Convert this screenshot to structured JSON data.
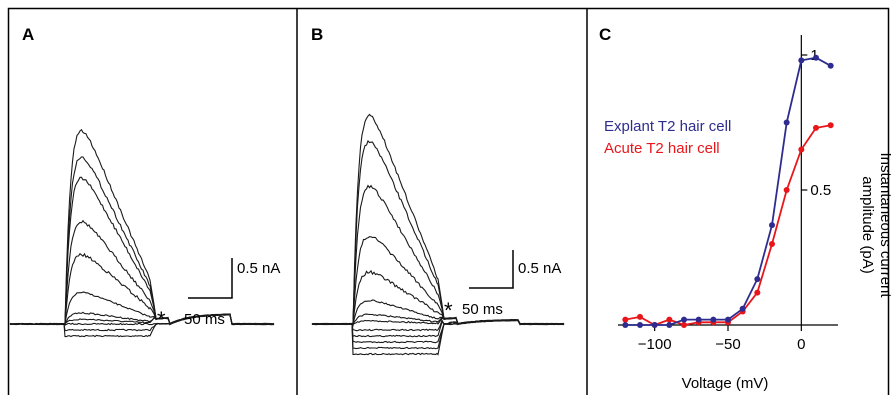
{
  "panels": [
    {
      "letter": "A",
      "scale_current": "0.5 nA",
      "scale_time": "50 ms",
      "marker": "*"
    },
    {
      "letter": "B",
      "scale_current": "0.5 nA",
      "scale_time": "50 ms",
      "marker": "*"
    },
    {
      "letter": "C"
    }
  ],
  "colors": {
    "explant": "#2e2d8f",
    "acute": "#e8161b",
    "trace": "#1a1a1a",
    "frame": "#000000"
  },
  "chart_data": {
    "type": "line",
    "xlabel": "Voltage (mV)",
    "ylabel_lines": [
      "Instantaneous current",
      "amplitude (pA)"
    ],
    "xlim": [
      -125,
      25
    ],
    "ylim": [
      0,
      1
    ],
    "x_ticks": [
      -100,
      -50,
      0
    ],
    "x_tick_labels": [
      "−100",
      "−50",
      "0"
    ],
    "y_ticks": [
      0.5,
      1
    ],
    "y_tick_labels": [
      "0.5",
      "1"
    ],
    "series": [
      {
        "name": "Explant T2 hair cell",
        "color": "#2e2d8f",
        "points": [
          [
            -120,
            0.0
          ],
          [
            -110,
            0.0
          ],
          [
            -100,
            0.0
          ],
          [
            -90,
            0.0
          ],
          [
            -80,
            0.02
          ],
          [
            -70,
            0.02
          ],
          [
            -60,
            0.02
          ],
          [
            -50,
            0.02
          ],
          [
            -40,
            0.06
          ],
          [
            -30,
            0.17
          ],
          [
            -20,
            0.37
          ],
          [
            -10,
            0.75
          ],
          [
            0,
            0.98
          ],
          [
            10,
            0.99
          ],
          [
            20,
            0.96
          ]
        ]
      },
      {
        "name": "Acute T2 hair cell",
        "color": "#e8161b",
        "points": [
          [
            -120,
            0.02
          ],
          [
            -110,
            0.03
          ],
          [
            -100,
            0.0
          ],
          [
            -90,
            0.02
          ],
          [
            -80,
            0.0
          ],
          [
            -70,
            0.01
          ],
          [
            -60,
            0.01
          ],
          [
            -50,
            0.01
          ],
          [
            -40,
            0.05
          ],
          [
            -30,
            0.12
          ],
          [
            -20,
            0.3
          ],
          [
            -10,
            0.5
          ],
          [
            0,
            0.65
          ],
          [
            10,
            0.73
          ],
          [
            20,
            0.74
          ]
        ]
      }
    ]
  }
}
